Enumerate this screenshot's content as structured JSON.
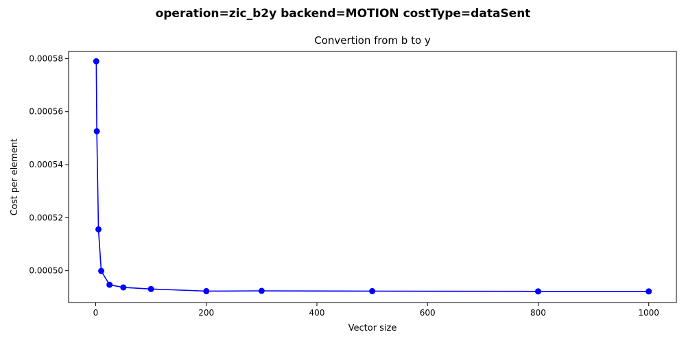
{
  "figure": {
    "suptitle": "operation=zic_b2y backend=MOTION costType=dataSent"
  },
  "chart_data": {
    "type": "line",
    "title": "Convertion from b to y",
    "xlabel": "Vector size",
    "ylabel": "Cost per element",
    "xlim": [
      -49,
      1050
    ],
    "ylim": [
      0.000488,
      0.0005827
    ],
    "xticks": [
      0,
      200,
      400,
      600,
      800,
      1000
    ],
    "xtick_labels": [
      "0",
      "200",
      "400",
      "600",
      "800",
      "1000"
    ],
    "yticks": [
      0.0005,
      0.00052,
      0.00054,
      0.00056,
      0.00058
    ],
    "ytick_labels": [
      "0.00050",
      "0.00052",
      "0.00054",
      "0.00056",
      "0.00058"
    ],
    "grid": false,
    "series": [
      {
        "color": "#0000ff",
        "marker": "circle",
        "x": [
          1,
          2,
          5,
          10,
          25,
          50,
          100,
          200,
          300,
          500,
          800,
          1000
        ],
        "y": [
          0.000579,
          0.0005526,
          0.0005156,
          0.0004999,
          0.0004947,
          0.0004937,
          0.0004931,
          0.0004923,
          0.0004924,
          0.0004923,
          0.0004922,
          0.0004922
        ]
      }
    ]
  }
}
